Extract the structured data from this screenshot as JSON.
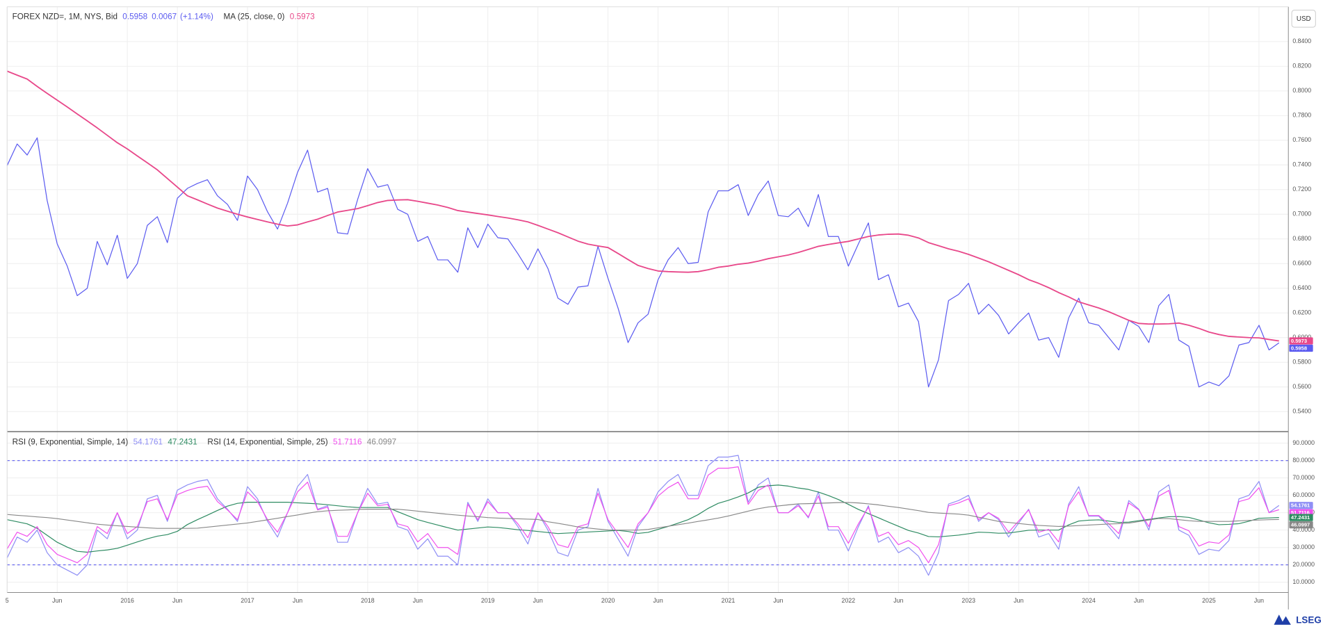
{
  "brand": "LSEG",
  "chart_data": [
    {
      "type": "line",
      "unit": "USD",
      "categories": [
        "5",
        null,
        null,
        null,
        null,
        "Jun",
        null,
        null,
        null,
        null,
        null,
        null,
        "2016",
        null,
        null,
        null,
        null,
        "Jun",
        null,
        null,
        null,
        null,
        null,
        null,
        "2017",
        null,
        null,
        null,
        null,
        "Jun",
        null,
        null,
        null,
        null,
        null,
        null,
        "2018",
        null,
        null,
        null,
        null,
        "Jun",
        null,
        null,
        null,
        null,
        null,
        null,
        "2019",
        null,
        null,
        null,
        null,
        "Jun",
        null,
        null,
        null,
        null,
        null,
        null,
        "2020",
        null,
        null,
        null,
        null,
        "Jun",
        null,
        null,
        null,
        null,
        null,
        null,
        "2021",
        null,
        null,
        null,
        null,
        "Jun",
        null,
        null,
        null,
        null,
        null,
        null,
        "2022",
        null,
        null,
        null,
        null,
        "Jun",
        null,
        null,
        null,
        null,
        null,
        null,
        "2023",
        null,
        null,
        null,
        null,
        "Jun",
        null,
        null,
        null,
        null,
        null,
        null,
        "2024",
        null,
        null,
        null,
        null,
        "Jun",
        null,
        null,
        null,
        null,
        null,
        null,
        "2025",
        null,
        null,
        null,
        null,
        "Jun",
        null,
        null
      ],
      "change": 0.0067,
      "change_pct": {
        "value": 1.14,
        "label": "(+1.14%)"
      },
      "series": [
        {
          "name": "FOREX NZD=, 1M, NYS, Bid",
          "color": "#5b5bf0",
          "values": [
            0.7395,
            0.757,
            0.748,
            0.762,
            0.711,
            0.676,
            0.658,
            0.634,
            0.64,
            0.678,
            0.659,
            0.683,
            0.648,
            0.66,
            0.691,
            0.698,
            0.677,
            0.713,
            0.721,
            0.725,
            0.728,
            0.715,
            0.708,
            0.695,
            0.731,
            0.72,
            0.702,
            0.688,
            0.709,
            0.734,
            0.752,
            0.718,
            0.721,
            0.685,
            0.684,
            0.712,
            0.737,
            0.722,
            0.724,
            0.704,
            0.7,
            0.678,
            0.682,
            0.663,
            0.663,
            0.653,
            0.689,
            0.673,
            0.692,
            0.681,
            0.68,
            0.668,
            0.655,
            0.672,
            0.656,
            0.632,
            0.627,
            0.641,
            0.642,
            0.674,
            0.648,
            0.624,
            0.596,
            0.612,
            0.619,
            0.647,
            0.663,
            0.673,
            0.66,
            0.661,
            0.702,
            0.719,
            0.719,
            0.724,
            0.699,
            0.716,
            0.727,
            0.699,
            0.698,
            0.705,
            0.69,
            0.716,
            0.682,
            0.682,
            0.658,
            0.676,
            0.693,
            0.647,
            0.651,
            0.625,
            0.628,
            0.613,
            0.56,
            0.582,
            0.63,
            0.635,
            0.644,
            0.619,
            0.627,
            0.618,
            0.603,
            0.612,
            0.62,
            0.598,
            0.6,
            0.584,
            0.616,
            0.632,
            0.612,
            0.61,
            0.6,
            0.59,
            0.614,
            0.609,
            0.596,
            0.626,
            0.635,
            0.598,
            0.593,
            0.56,
            0.564,
            0.561,
            0.569,
            0.594,
            0.596,
            0.61,
            0.59,
            0.5958
          ]
        },
        {
          "name": "MA (25, close, 0)",
          "color": "#e8488a",
          "values": [
            0.816,
            0.8128,
            0.8096,
            0.8036,
            0.798,
            0.7925,
            0.787,
            0.7813,
            0.7757,
            0.77,
            0.764,
            0.758,
            0.753,
            0.7473,
            0.7417,
            0.736,
            0.729,
            0.722,
            0.715,
            0.7117,
            0.7083,
            0.705,
            0.7025,
            0.7,
            0.6978,
            0.6958,
            0.6938,
            0.692,
            0.6905,
            0.6914,
            0.6938,
            0.696,
            0.699,
            0.7018,
            0.7032,
            0.7046,
            0.707,
            0.7095,
            0.7112,
            0.7116,
            0.7118,
            0.7105,
            0.709,
            0.7075,
            0.7055,
            0.703,
            0.7018,
            0.7006,
            0.6995,
            0.6982,
            0.697,
            0.6955,
            0.6938,
            0.691,
            0.688,
            0.685,
            0.6816,
            0.6782,
            0.6758,
            0.6743,
            0.673,
            0.6682,
            0.6633,
            0.6585,
            0.656,
            0.654,
            0.6535,
            0.6532,
            0.653,
            0.6535,
            0.655,
            0.657,
            0.658,
            0.6595,
            0.6604,
            0.662,
            0.664,
            0.6655,
            0.667,
            0.669,
            0.6715,
            0.674,
            0.6755,
            0.6768,
            0.678,
            0.68,
            0.682,
            0.6832,
            0.6838,
            0.684,
            0.683,
            0.6808,
            0.677,
            0.6745,
            0.672,
            0.67,
            0.6675,
            0.6645,
            0.6615,
            0.658,
            0.6545,
            0.651,
            0.647,
            0.644,
            0.6405,
            0.6365,
            0.633,
            0.629,
            0.6265,
            0.624,
            0.621,
            0.6175,
            0.614,
            0.6115,
            0.611,
            0.611,
            0.6112,
            0.6118,
            0.61,
            0.6075,
            0.6045,
            0.6025,
            0.601,
            0.6005,
            0.6,
            0.5998,
            0.5985,
            0.5973
          ]
        }
      ],
      "ylim": [
        0.5248,
        0.8682
      ],
      "yticks": [
        {
          "value": 0.84,
          "label": "0.8400"
        },
        {
          "value": 0.82,
          "label": "0.8200"
        },
        {
          "value": 0.8,
          "label": "0.8000"
        },
        {
          "value": 0.78,
          "label": "0.7800"
        },
        {
          "value": 0.76,
          "label": "0.7600"
        },
        {
          "value": 0.74,
          "label": "0.7400"
        },
        {
          "value": 0.72,
          "label": "0.7200"
        },
        {
          "value": 0.7,
          "label": "0.7000"
        },
        {
          "value": 0.68,
          "label": "0.6800"
        },
        {
          "value": 0.66,
          "label": "0.6600"
        },
        {
          "value": 0.64,
          "label": "0.6400"
        },
        {
          "value": 0.62,
          "label": "0.6200"
        },
        {
          "value": 0.6,
          "label": "0.6000"
        },
        {
          "value": 0.58,
          "label": "0.5800"
        },
        {
          "value": 0.56,
          "label": "0.5600"
        },
        {
          "value": 0.54,
          "label": "0.5400"
        }
      ],
      "grid": true
    },
    {
      "type": "line",
      "series": [
        {
          "name": "RSI (9, Exponential, Simple, 14)",
          "color": "#8f8ff5",
          "values": [
            24,
            36,
            33,
            40,
            27,
            20,
            17,
            14,
            20,
            40,
            35,
            50,
            35,
            40,
            58,
            60,
            45,
            63,
            66,
            68,
            69,
            58,
            52,
            45,
            65,
            58,
            45,
            36,
            50,
            65,
            72,
            52,
            54,
            33,
            33,
            50,
            64,
            55,
            56,
            42,
            40,
            29,
            35,
            25,
            25,
            20,
            56,
            45,
            58,
            50,
            50,
            42,
            32,
            50,
            40,
            27,
            25,
            40,
            42,
            64,
            45,
            35,
            25,
            42,
            50,
            62,
            68,
            72,
            60,
            60,
            77,
            82,
            82,
            83,
            56,
            66,
            70,
            50,
            50,
            55,
            47,
            62,
            40,
            40,
            28,
            42,
            54,
            33,
            36,
            27,
            30,
            25,
            14,
            27,
            55,
            57,
            60,
            45,
            50,
            46,
            36,
            44,
            52,
            36,
            38,
            29,
            55,
            65,
            48,
            48,
            42,
            35,
            57,
            52,
            40,
            62,
            66,
            40,
            37,
            26,
            29,
            28,
            34,
            58,
            60,
            68,
            50,
            54.1761
          ]
        },
        {
          "color": "#2e8b62",
          "values": [
            46,
            44.8,
            43.6,
            41,
            37,
            33,
            30.2,
            27.8,
            27.3,
            28,
            28.6,
            29.5,
            31.3,
            33.2,
            35,
            36.5,
            37.4,
            39.3,
            43.2,
            46,
            48.6,
            51.3,
            53.8,
            55.4,
            56,
            56,
            56,
            56,
            56,
            55.7,
            55.4,
            55.1,
            54.6,
            54,
            53.4,
            53,
            53,
            53,
            53,
            50.6,
            48.3,
            46,
            44.4,
            42.9,
            41.4,
            40,
            40.6,
            41.2,
            41.8,
            41.5,
            40.9,
            40.2,
            39.8,
            39.2,
            38.6,
            38,
            38.3,
            38.6,
            38.9,
            39.2,
            39.5,
            39.8,
            39.2,
            38.1,
            38.7,
            40.4,
            42.1,
            44,
            46,
            48.9,
            52.5,
            55.4,
            57.1,
            59.1,
            61.4,
            64.6,
            65.5,
            65.9,
            65.3,
            64.2,
            63.4,
            61.9,
            59.9,
            57.6,
            54.8,
            51.9,
            49.5,
            47.1,
            44.6,
            42.2,
            39.8,
            38.3,
            36.3,
            36.1,
            36.6,
            37.1,
            37.9,
            38.8,
            38.6,
            38.2,
            38.3,
            39.1,
            39.9,
            40,
            40,
            40,
            43,
            45.2,
            45.7,
            45.9,
            45.2,
            44.4,
            44.6,
            45.4,
            46.2,
            47,
            47.7,
            47.8,
            47.3,
            45.8,
            44.2,
            43.1,
            43.3,
            43.7,
            45.1,
            46.8,
            47,
            47.2431
          ]
        },
        {
          "name": "RSI (14, Exponential, Simple, 25)",
          "color": "#f050ee",
          "values": [
            29.2,
            38.8,
            36.4,
            42,
            31.6,
            26,
            23.6,
            21.2,
            26,
            42,
            38,
            50,
            38,
            42,
            56.4,
            58,
            46,
            60.4,
            62.8,
            64.4,
            65.2,
            56.4,
            51.6,
            46,
            62,
            56.4,
            46,
            38.8,
            50,
            62,
            67.6,
            51.6,
            53.2,
            36.4,
            36.4,
            50,
            61.2,
            54,
            54.8,
            43.6,
            42,
            33.2,
            38,
            30,
            30,
            26,
            54.8,
            46,
            56.4,
            50,
            50,
            43.6,
            35.6,
            50,
            42,
            31.6,
            30,
            42,
            43.6,
            61.2,
            46,
            38,
            30,
            43.6,
            50,
            59.6,
            64.4,
            67.6,
            58,
            58,
            71.6,
            75.6,
            75.6,
            76.4,
            54.8,
            62.8,
            66,
            50,
            50,
            54,
            47.6,
            59.6,
            42,
            42,
            32.4,
            43.6,
            53.2,
            36.4,
            38.8,
            31.6,
            34,
            30,
            21.2,
            31.6,
            54,
            55.6,
            58,
            46,
            50,
            46.8,
            38.8,
            45.2,
            51.6,
            38.8,
            40.4,
            33.2,
            54,
            62,
            48.4,
            48.4,
            43.6,
            38,
            55.6,
            51.6,
            42,
            59.6,
            62.8,
            42,
            39.6,
            30.8,
            33.2,
            32.4,
            37.2,
            56.4,
            58,
            64.4,
            50,
            51.7116
          ]
        },
        {
          "color": "#888888",
          "values": [
            49,
            48.5,
            48.1,
            47.6,
            47.2,
            46.6,
            45.8,
            45,
            44.2,
            43.4,
            42.9,
            42.5,
            42.1,
            41.7,
            41.3,
            41,
            41,
            41,
            41,
            41.1,
            41.7,
            42.3,
            42.9,
            43.5,
            44.1,
            45,
            45.9,
            46.8,
            47.8,
            48.7,
            49.7,
            50.6,
            51.1,
            51.4,
            51.6,
            51.9,
            52,
            52,
            52,
            52,
            51.5,
            50.9,
            50.3,
            49.7,
            49.1,
            48.6,
            48.1,
            47.7,
            47.2,
            46.9,
            46.7,
            46.5,
            46.3,
            46.1,
            44.8,
            43.9,
            42.9,
            41.8,
            41.2,
            40.6,
            40.1,
            40,
            40,
            40,
            40.4,
            41.3,
            42.2,
            43.1,
            44,
            45,
            45.9,
            46.9,
            48.1,
            49.5,
            50.9,
            52.3,
            53.3,
            53.9,
            54.5,
            55.1,
            55.2,
            55.4,
            55.6,
            55.8,
            55.9,
            55.6,
            55.1,
            54.5,
            53.7,
            53,
            52.1,
            51.2,
            50.2,
            49.8,
            49.5,
            49.2,
            48.6,
            47.4,
            46.2,
            45,
            44.4,
            43.8,
            43.2,
            42.7,
            42.4,
            42.1,
            42.3,
            42.6,
            42.9,
            43.2,
            43.5,
            43.7,
            44,
            44.9,
            45.8,
            46.7,
            46.6,
            46,
            45.4,
            45,
            45,
            45,
            45,
            45.3,
            45.6,
            45.8,
            46,
            46.0997
          ]
        }
      ],
      "hlines": [
        80,
        20
      ],
      "hline_color": "#5b5bf0",
      "ylim": [
        4.1,
        95.9
      ],
      "yticks": [
        {
          "value": 90,
          "label": "90.0000"
        },
        {
          "value": 80,
          "label": "80.0000"
        },
        {
          "value": 70,
          "label": "70.0000"
        },
        {
          "value": 60,
          "label": "60.0000"
        },
        {
          "value": 50,
          "label": "50.0000"
        },
        {
          "value": 40,
          "label": "40.0000"
        },
        {
          "value": 30,
          "label": "30.0000"
        },
        {
          "value": 20,
          "label": "20.0000"
        },
        {
          "value": 10,
          "label": "10.0000"
        }
      ],
      "grid": true
    }
  ]
}
